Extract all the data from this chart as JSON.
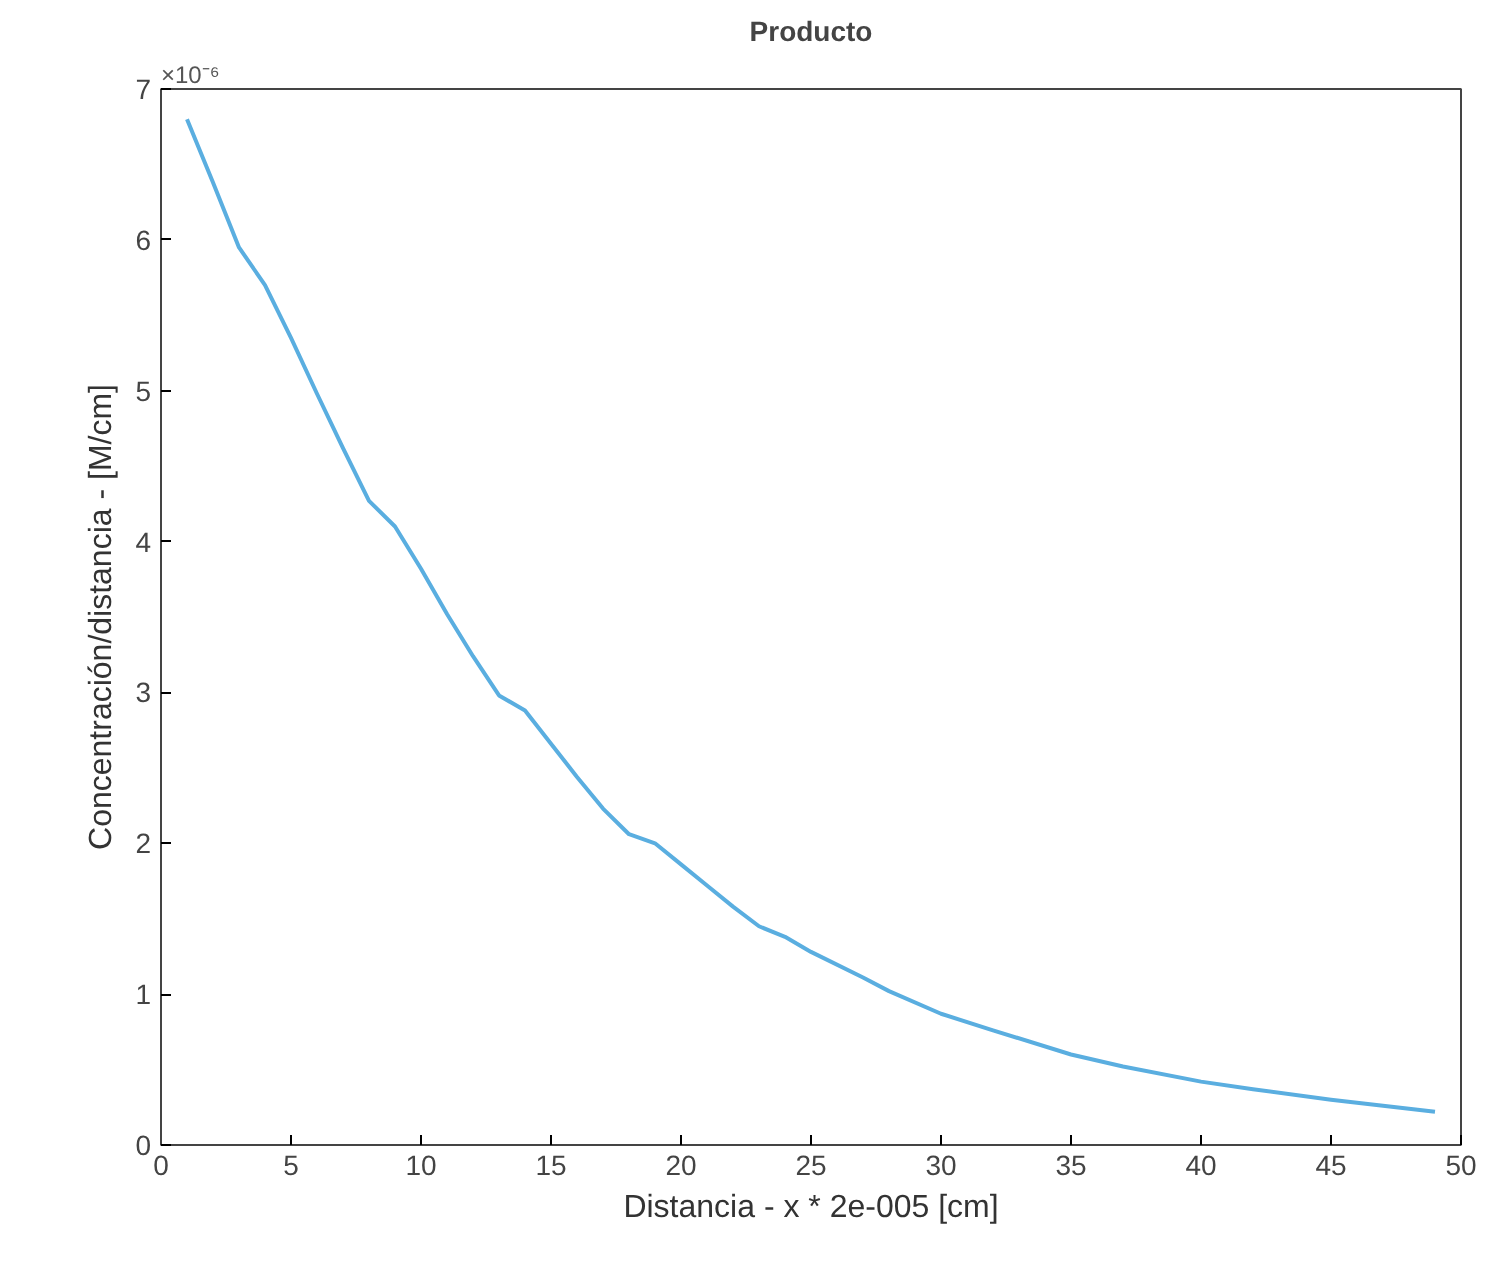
{
  "chart_data": {
    "type": "line",
    "title": "Producto",
    "xlabel": "Distancia - x * 2e-005 [cm]",
    "ylabel": "Concentración/distancia - [M/cm]",
    "annotations": [
      "×10⁻⁶"
    ],
    "x": [
      1,
      2,
      3,
      4,
      5,
      6,
      7,
      8,
      9,
      10,
      11,
      12,
      13,
      14,
      15,
      16,
      17,
      18,
      19,
      20,
      21,
      22,
      23,
      24,
      25,
      27,
      28,
      30,
      32,
      35,
      37,
      40,
      42,
      45,
      47,
      49
    ],
    "series": [
      {
        "color": "#5aaee0",
        "values": [
          6.8,
          6.38,
          5.95,
          5.7,
          5.35,
          4.98,
          4.62,
          4.27,
          4.1,
          3.82,
          3.52,
          3.24,
          2.98,
          2.88,
          2.66,
          2.44,
          2.23,
          2.06,
          2.0,
          1.86,
          1.72,
          1.58,
          1.45,
          1.38,
          1.28,
          1.11,
          1.02,
          0.87,
          0.76,
          0.6,
          0.52,
          0.42,
          0.37,
          0.3,
          0.26,
          0.22
        ]
      }
    ],
    "xlim": [
      0,
      50
    ],
    "ylim": [
      0,
      7
    ],
    "xticks": [
      0,
      5,
      10,
      15,
      20,
      25,
      30,
      35,
      40,
      45,
      50
    ],
    "yticks": [
      0,
      1,
      2,
      3,
      4,
      5,
      6,
      7
    ],
    "line_style": "solid"
  }
}
